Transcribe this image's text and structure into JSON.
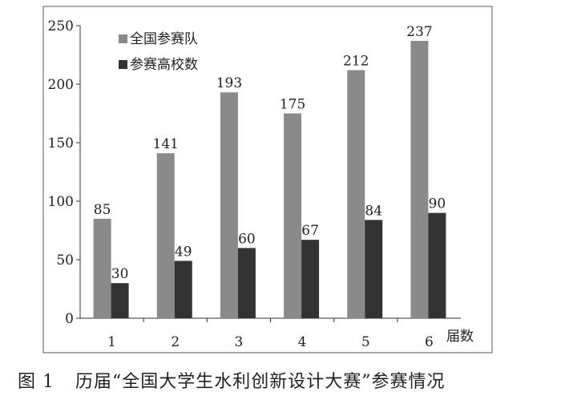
{
  "chart_data": {
    "type": "bar",
    "title": "",
    "xlabel": "届数",
    "ylabel": "",
    "categories": [
      "1",
      "2",
      "3",
      "4",
      "5",
      "6"
    ],
    "series": [
      {
        "name": "全国参赛队",
        "values": [
          85,
          141,
          193,
          175,
          212,
          237
        ],
        "color": "#8a8a8a"
      },
      {
        "name": "参赛高校数",
        "values": [
          30,
          49,
          60,
          67,
          84,
          90
        ],
        "color": "#333333"
      }
    ],
    "yticks": [
      0,
      50,
      100,
      150,
      200,
      250
    ],
    "ylim": [
      0,
      250
    ],
    "grid": false,
    "legend": "top-left",
    "data_labels": true
  },
  "caption": {
    "label": "图 1",
    "text": "历届“全国大学生水利创新设计大赛”参赛情况"
  }
}
